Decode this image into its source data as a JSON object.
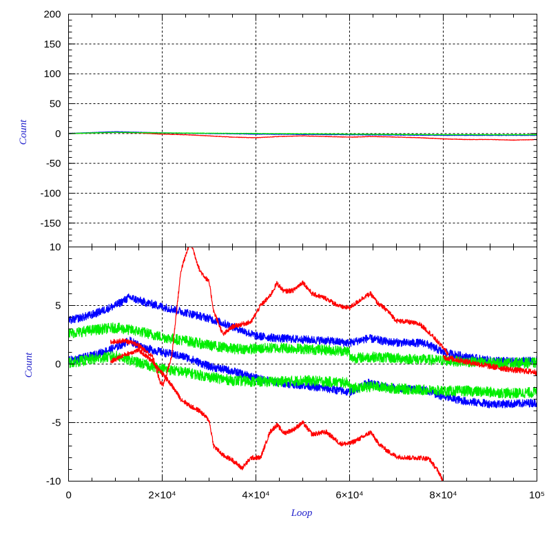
{
  "chart_data": [
    {
      "type": "line",
      "panel": "top",
      "ylabel": "Count",
      "xlim": [
        0,
        100000
      ],
      "ylim": [
        -190,
        200
      ],
      "yticks": [
        200,
        150,
        100,
        50,
        0,
        -50,
        -100,
        -150
      ],
      "ytick_labels": [
        "200",
        "150",
        "100",
        "50",
        "0",
        "-50",
        "-100",
        "-150"
      ],
      "xticks": [
        0,
        20000,
        40000,
        60000,
        80000,
        100000
      ],
      "grid": true,
      "colors": {
        "red": "#ff0000",
        "blue": "#0000ff",
        "green": "#00ee00"
      },
      "series": [
        {
          "color": "red",
          "x": [
            0,
            5000,
            10000,
            15000,
            20000,
            25000,
            30000,
            35000,
            40000,
            45000,
            50000,
            55000,
            60000,
            65000,
            70000,
            75000,
            80000,
            85000,
            90000,
            95000,
            100000
          ],
          "y": [
            0,
            1,
            2,
            1,
            -1,
            -2,
            -4,
            -6,
            -7,
            -5,
            -4,
            -5,
            -6,
            -5,
            -6,
            -7,
            -9,
            -10,
            -10,
            -11,
            -10
          ]
        },
        {
          "color": "blue",
          "x": [
            0,
            10000,
            20000,
            40000,
            60000,
            80000,
            100000
          ],
          "y": [
            0,
            3,
            1,
            -1,
            -2,
            -3,
            -3
          ]
        },
        {
          "color": "green",
          "x": [
            0,
            10000,
            20000,
            40000,
            60000,
            80000,
            100000
          ],
          "y": [
            0,
            2,
            1,
            0,
            -1,
            -2,
            -2
          ]
        }
      ]
    },
    {
      "type": "line",
      "panel": "bottom",
      "ylabel": "Count",
      "xlabel": "Loop",
      "xlim": [
        0,
        100000
      ],
      "ylim": [
        -10,
        10
      ],
      "yticks": [
        10,
        5,
        0,
        -5,
        -10
      ],
      "ytick_labels": [
        "10",
        "5",
        "0",
        "-5",
        "-10"
      ],
      "xticks": [
        0,
        20000,
        40000,
        60000,
        80000,
        100000
      ],
      "xtick_labels": [
        "0",
        "2×10⁴",
        "4×10⁴",
        "6×10⁴",
        "8×10⁴",
        "10⁵"
      ],
      "grid": true,
      "colors": {
        "red": "#ff0000",
        "blue": "#0000ff",
        "green": "#00ee00"
      },
      "series": [
        {
          "color": "blue",
          "band": 0.7,
          "x": [
            0,
            5000,
            10000,
            13000,
            16000,
            20000,
            25000,
            30000,
            35000,
            40000,
            45000,
            50000,
            55000,
            60000,
            64000,
            68000,
            72000,
            76000,
            80000,
            85000,
            90000,
            95000,
            100000
          ],
          "y": [
            3.7,
            4.2,
            5.0,
            5.7,
            5.3,
            4.9,
            4.4,
            3.9,
            3.2,
            2.4,
            2.2,
            2.1,
            2.0,
            1.8,
            2.2,
            1.9,
            1.8,
            1.8,
            1.0,
            0.6,
            0.3,
            0.2,
            0.3
          ]
        },
        {
          "color": "blue",
          "band": 0.7,
          "x": [
            0,
            5000,
            10000,
            13000,
            16000,
            20000,
            25000,
            30000,
            35000,
            40000,
            45000,
            50000,
            55000,
            60000,
            64000,
            68000,
            72000,
            76000,
            80000,
            85000,
            90000,
            95000,
            100000
          ],
          "y": [
            0.3,
            0.7,
            1.4,
            2.0,
            1.4,
            1.0,
            0.6,
            -0.2,
            -0.6,
            -1.2,
            -1.6,
            -1.8,
            -2.1,
            -2.4,
            -1.6,
            -2.0,
            -2.1,
            -2.2,
            -2.8,
            -3.2,
            -3.4,
            -3.4,
            -3.3
          ]
        },
        {
          "color": "green",
          "band": 0.9,
          "x": [
            0,
            5000,
            10000,
            15000,
            20000,
            25000,
            30000,
            35000,
            40000,
            45000,
            50000,
            55000,
            59900,
            60100,
            65000,
            70000,
            75000,
            80000,
            85000,
            90000,
            95000,
            100000
          ],
          "y": [
            2.6,
            2.9,
            3.1,
            2.8,
            2.3,
            2.0,
            1.6,
            1.3,
            1.3,
            1.4,
            1.3,
            1.2,
            1.1,
            0.5,
            0.6,
            0.5,
            0.4,
            0.3,
            0.2,
            0.1,
            0.1,
            0.1
          ]
        },
        {
          "color": "green",
          "band": 0.9,
          "x": [
            0,
            5000,
            10000,
            15000,
            20000,
            25000,
            30000,
            35000,
            40000,
            45000,
            50000,
            55000,
            59900,
            60100,
            65000,
            70000,
            75000,
            80000,
            85000,
            90000,
            95000,
            100000
          ],
          "y": [
            0.1,
            0.4,
            0.7,
            0.1,
            -0.4,
            -0.7,
            -1.1,
            -1.4,
            -1.5,
            -1.5,
            -1.4,
            -1.5,
            -1.6,
            -2.1,
            -1.9,
            -2.1,
            -2.2,
            -2.3,
            -2.3,
            -2.4,
            -2.5,
            -2.4
          ]
        },
        {
          "color": "red",
          "band": 0.4,
          "x": [
            9000,
            12000,
            15000,
            18000,
            19500,
            20200,
            22000,
            24000,
            26000,
            28000,
            30000,
            31000,
            33000,
            35000,
            37000,
            39000,
            41000,
            43000,
            44500,
            46000,
            48000,
            50000,
            52000,
            55000,
            58000,
            60000,
            63000,
            64500,
            66000,
            68000,
            70000,
            72500,
            75000,
            77000,
            79000,
            80500,
            81000
          ],
          "y": [
            1.9,
            2.0,
            1.6,
            0.6,
            -1.5,
            -1.8,
            0.6,
            8.0,
            10.5,
            8.0,
            7.0,
            4.5,
            2.5,
            3.2,
            3.4,
            3.6,
            5.0,
            5.8,
            6.9,
            6.2,
            6.3,
            7.0,
            6.0,
            5.6,
            4.9,
            4.8,
            5.7,
            6.0,
            5.2,
            4.6,
            3.7,
            3.6,
            3.4,
            2.7,
            1.8,
            1.2,
            0.8
          ]
        },
        {
          "color": "red",
          "band": 0.4,
          "x": [
            9000,
            12000,
            15000,
            18000,
            20000,
            22000,
            24000,
            26000,
            28000,
            30000,
            31000,
            33000,
            35000,
            37000,
            39000,
            41000,
            43000,
            44500,
            46000,
            48000,
            50000,
            52000,
            55000,
            58000,
            60000,
            63000,
            64500,
            66000,
            68000,
            70000,
            72500,
            75000,
            77000,
            79000,
            80000
          ],
          "y": [
            0.2,
            0.8,
            1.2,
            0.2,
            -0.8,
            -1.8,
            -3.0,
            -3.6,
            -4.0,
            -4.8,
            -7.0,
            -7.8,
            -8.2,
            -8.9,
            -8.0,
            -8.0,
            -5.8,
            -5.2,
            -5.9,
            -5.6,
            -5.0,
            -6.0,
            -5.8,
            -6.8,
            -6.8,
            -6.2,
            -5.8,
            -6.7,
            -7.4,
            -7.9,
            -8.0,
            -8.0,
            -8.1,
            -9.2,
            -10.0
          ]
        },
        {
          "color": "red",
          "band": 0.5,
          "x": [
            80000,
            85000,
            90000,
            95000,
            100000
          ],
          "y": [
            0.6,
            0.2,
            -0.2,
            -0.5,
            -0.7
          ]
        }
      ]
    }
  ]
}
